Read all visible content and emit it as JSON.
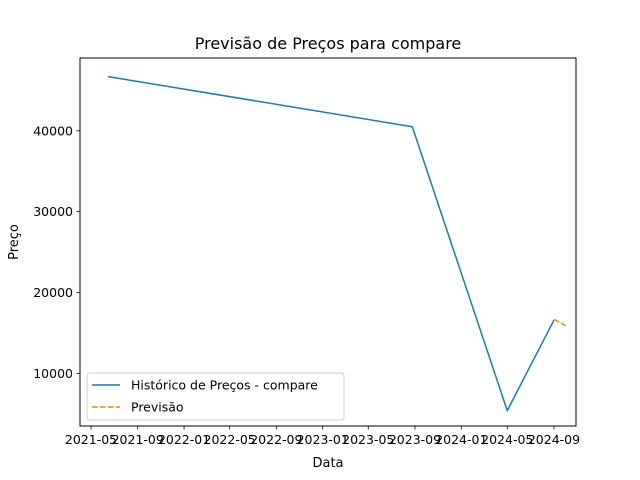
{
  "chart_data": {
    "type": "line",
    "title": "Previsão de Preços para compare",
    "xlabel": "Data",
    "ylabel": "Preço",
    "x_ticks": [
      "2021-05",
      "2021-09",
      "2022-01",
      "2022-05",
      "2022-09",
      "2023-01",
      "2023-05",
      "2023-09",
      "2024-01",
      "2024-05",
      "2024-09"
    ],
    "y_ticks": [
      10000,
      20000,
      30000,
      40000
    ],
    "ylim": [
      3500,
      49000
    ],
    "xlim": [
      "2021-04-02",
      "2024-10-29"
    ],
    "series": [
      {
        "name": "Histórico de Preços - compare",
        "style": "solid",
        "color": "#1f77b4",
        "points": [
          {
            "x": "2021-06-15",
            "y": 46700
          },
          {
            "x": "2023-08-25",
            "y": 40500
          },
          {
            "x": "2024-05-01",
            "y": 5400
          },
          {
            "x": "2024-09-01",
            "y": 16600
          }
        ]
      },
      {
        "name": "Previsão",
        "style": "dashed",
        "color": "#ff7f0e",
        "points": [
          {
            "x": "2024-09-01",
            "y": 16700
          },
          {
            "x": "2024-10-01",
            "y": 15900
          }
        ]
      }
    ],
    "grid": false,
    "legend_position": "lower left"
  }
}
